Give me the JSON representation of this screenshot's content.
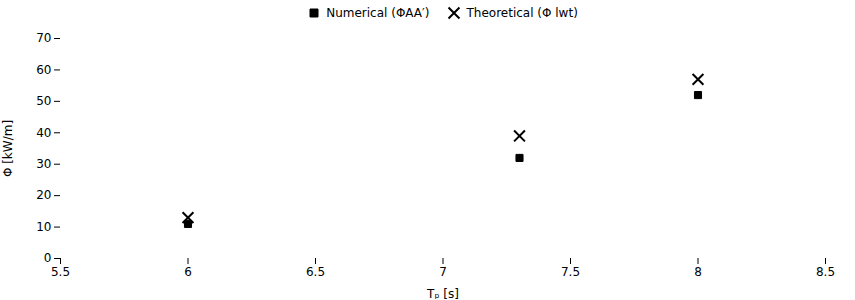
{
  "chart_data": {
    "type": "scatter",
    "xlabel": "Tₚ [s]",
    "ylabel": "Φ [kW/m]",
    "x": [
      6.0,
      7.3,
      8.0
    ],
    "series": [
      {
        "name": "Numerical (ΦAA′)",
        "color": "black",
        "marker": "square",
        "values": [
          11.0,
          32.0,
          52.0
        ]
      },
      {
        "name": "Theoretical (Φ lwt)",
        "color": "black",
        "marker": "x",
        "values": [
          13.0,
          39.0,
          57.0
        ]
      }
    ],
    "xlim": [
      5.5,
      8.5
    ],
    "ylim": [
      0,
      70
    ],
    "xticks": [
      5.5,
      6.0,
      6.5,
      7.0,
      7.5,
      8.0,
      8.5
    ],
    "yticks": [
      0,
      10,
      20,
      30,
      40,
      50,
      60,
      70
    ],
    "grid": false,
    "legend": "upper center"
  }
}
